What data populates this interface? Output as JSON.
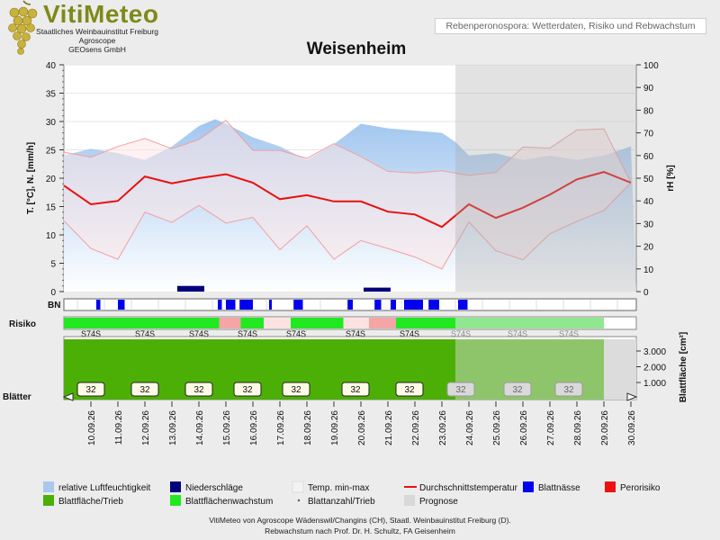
{
  "header": {
    "logo_name": "VitiMeteo",
    "logo_lines": [
      "Staatliches Weinbauinstitut Freiburg",
      "Agroscope",
      "GEOsens GmbH"
    ],
    "report_title": "Rebenperonospora: Wetterdaten, Risiko und Rebwachstum",
    "station": "Weisenheim"
  },
  "labels": {
    "bn": "BN",
    "risiko": "Risiko",
    "blaetter": "Blätter",
    "risk_code": "S74S"
  },
  "legend": [
    {
      "label": "relative Luftfeuchtigkeit",
      "color": "#a8c8ec"
    },
    {
      "label": "Niederschläge",
      "color": "#00007a"
    },
    {
      "label": "Temp. min-max",
      "color": "#f2f2f2"
    },
    {
      "label": "Durchschnittstemperatur",
      "color": "#e81010"
    },
    {
      "label": "Blattnässe",
      "color": "#0000ee"
    },
    {
      "label": "Perorisiko",
      "color": "#ee1111"
    },
    {
      "label": "Blattfläche/Trieb",
      "color": "#4caf06"
    },
    {
      "label": "Blattflächenwachstum",
      "color": "#22e822"
    },
    {
      "label": "Blattanzahl/Trieb",
      "color": "#555555"
    },
    {
      "label": "Prognose",
      "color": "#d8d8d8"
    }
  ],
  "footer": {
    "line1": "VitiMeteo von Agroscope Wädenswil/Changins (CH), Staatl. Weinbauinstitut Freiburg (D).",
    "line2": "Rebwachstum nach Prof. Dr. H. Schultz, FA Geisenheim"
  },
  "chart_data": {
    "type": "line",
    "title": "Weisenheim",
    "ylabel": "T. [°C], N. [mm/h]",
    "y2label": "rH [%]",
    "y3label": "Blattfläche [cm²]",
    "ylim": [
      0,
      40
    ],
    "y2lim": [
      0,
      100
    ],
    "yticks": [
      0,
      5,
      10,
      15,
      20,
      25,
      30,
      35,
      40
    ],
    "y2ticks": [
      0,
      10,
      20,
      30,
      40,
      50,
      60,
      70,
      80,
      90,
      100
    ],
    "y3ticks": [
      "1.000",
      "2.000",
      "3.000"
    ],
    "dates": [
      "10.09.26",
      "11.09.26",
      "12.09.26",
      "13.09.26",
      "14.09.26",
      "15.09.26",
      "16.09.26",
      "17.09.26",
      "18.09.26",
      "19.09.26",
      "20.09.26",
      "21.09.26",
      "22.09.26",
      "23.09.26",
      "24.09.26",
      "25.09.26",
      "26.09.26",
      "27.09.26",
      "28.09.26",
      "29.09.26",
      "30.09.26"
    ],
    "forecast_start": "23.09.26 12:00",
    "humidity_x": [
      9.0,
      10.0,
      11.0,
      12.0,
      13.0,
      14.0,
      14.6,
      15.0,
      16.0,
      17.0,
      18.0,
      19.0,
      20.0,
      21.0,
      22.0,
      23.0,
      23.5,
      24.0,
      25.0,
      26.0,
      27.0,
      28.0,
      29.0,
      30.0
    ],
    "humidity_rh": [
      60,
      63,
      61,
      58,
      64,
      73,
      76,
      74,
      68,
      64,
      58,
      65,
      74,
      72,
      71,
      70,
      66,
      60,
      61,
      58,
      60,
      58,
      60,
      64
    ],
    "temp_x": [
      9,
      10,
      11,
      12,
      13,
      14,
      15,
      16,
      17,
      18,
      19,
      20,
      21,
      22,
      23,
      24,
      25,
      26,
      27,
      28,
      29,
      30
    ],
    "temp_mean": [
      18.7,
      15.4,
      16.0,
      20.3,
      19.1,
      20.0,
      20.7,
      19.2,
      16.3,
      17.0,
      15.9,
      15.9,
      14.1,
      13.6,
      11.4,
      15.4,
      13.0,
      14.8,
      17.1,
      19.8,
      21.1,
      19.2
    ],
    "temp_max": [
      24.6,
      23.7,
      25.6,
      27.0,
      25.2,
      26.8,
      30.2,
      24.9,
      24.9,
      23.5,
      26.1,
      23.8,
      21.2,
      20.9,
      21.3,
      20.5,
      21.0,
      25.5,
      25.3,
      28.5,
      28.7,
      19.2
    ],
    "temp_min": [
      12.5,
      7.6,
      5.7,
      14.0,
      12.2,
      15.2,
      12.1,
      13.1,
      7.4,
      11.6,
      5.7,
      9.0,
      7.6,
      6.1,
      4.0,
      12.3,
      7.2,
      5.6,
      10.2,
      12.4,
      14.3,
      19.2
    ],
    "precip": [
      {
        "x": 13.2,
        "w": 1.0,
        "v": 1.0
      },
      {
        "x": 20.1,
        "w": 1.0,
        "v": 0.7
      }
    ],
    "leaf_wetness": [
      [
        10.2,
        10.35
      ],
      [
        11.0,
        11.25
      ],
      [
        14.7,
        14.85
      ],
      [
        15.0,
        15.35
      ],
      [
        15.5,
        16.0
      ],
      [
        16.6,
        16.7
      ],
      [
        17.5,
        17.85
      ],
      [
        19.5,
        19.7
      ],
      [
        20.5,
        20.75
      ],
      [
        21.1,
        21.3
      ],
      [
        21.6,
        22.3
      ],
      [
        22.5,
        22.9
      ],
      [
        23.6,
        23.95
      ]
    ],
    "risk_bar": [
      {
        "from": 9.0,
        "to": 14.75,
        "color": "#22e822"
      },
      {
        "from": 14.75,
        "to": 15.55,
        "color": "#f4a5a5"
      },
      {
        "from": 15.55,
        "to": 16.4,
        "color": "#22e822"
      },
      {
        "from": 16.4,
        "to": 17.4,
        "color": "#fde2e2"
      },
      {
        "from": 17.4,
        "to": 19.35,
        "color": "#22e822"
      },
      {
        "from": 19.35,
        "to": 20.3,
        "color": "#fde2e2"
      },
      {
        "from": 20.3,
        "to": 21.3,
        "color": "#f4a5a5"
      },
      {
        "from": 21.3,
        "to": 23.5,
        "color": "#22e822"
      },
      {
        "from": 23.5,
        "to": 29.0,
        "color": "#8fe88f"
      }
    ],
    "risk_labels_x": [
      10,
      12,
      14,
      15.8,
      17.6,
      19.8,
      21.8,
      23.7,
      25.8,
      27.7
    ],
    "leaf_area_end": 29.0,
    "leaf_count": [
      {
        "x": 10,
        "v": 32
      },
      {
        "x": 12,
        "v": 32
      },
      {
        "x": 14,
        "v": 32
      },
      {
        "x": 15.8,
        "v": 32
      },
      {
        "x": 17.6,
        "v": 32
      },
      {
        "x": 19.8,
        "v": 32
      },
      {
        "x": 21.8,
        "v": 32
      },
      {
        "x": 23.7,
        "v": 32
      },
      {
        "x": 25.8,
        "v": 32
      },
      {
        "x": 27.7,
        "v": 32
      }
    ]
  }
}
